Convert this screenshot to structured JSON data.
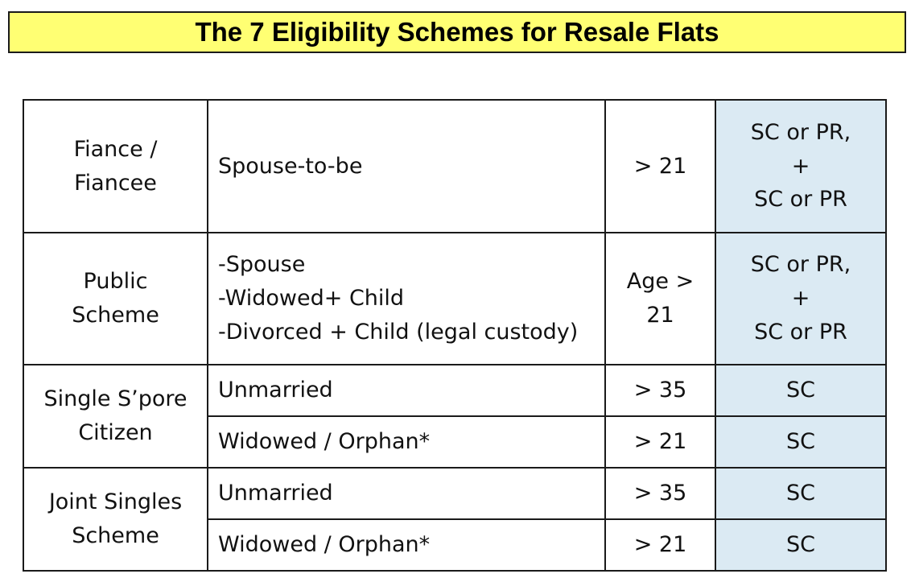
{
  "title": "The 7 Eligibility Schemes for Resale Flats",
  "rows": [
    {
      "scheme": [
        "Fiance /",
        "Fiancee"
      ],
      "descriptions": [
        "Spouse-to-be"
      ],
      "age": [
        "> 21"
      ],
      "citizenship": [
        "SC or PR,",
        "+",
        "SC or PR"
      ]
    },
    {
      "scheme": [
        "Public",
        "Scheme"
      ],
      "descriptions": [
        "-Spouse",
        "-Widowed+ Child",
        "-Divorced + Child (legal custody)"
      ],
      "age": [
        "Age >",
        "21"
      ],
      "citizenship": [
        "SC or PR,",
        "+",
        "SC or PR"
      ]
    },
    {
      "scheme": [
        "Single S’pore",
        "Citizen"
      ],
      "sub": [
        {
          "description": "Unmarried",
          "age": "> 35",
          "citizenship": "SC"
        },
        {
          "description": "Widowed / Orphan*",
          "age": "> 21",
          "citizenship": "SC"
        }
      ]
    },
    {
      "scheme": [
        "Joint Singles",
        "Scheme"
      ],
      "sub": [
        {
          "description": "Unmarried",
          "age": "> 35",
          "citizenship": "SC"
        },
        {
          "description": "Widowed / Orphan*",
          "age": "> 21",
          "citizenship": "SC"
        }
      ]
    }
  ]
}
